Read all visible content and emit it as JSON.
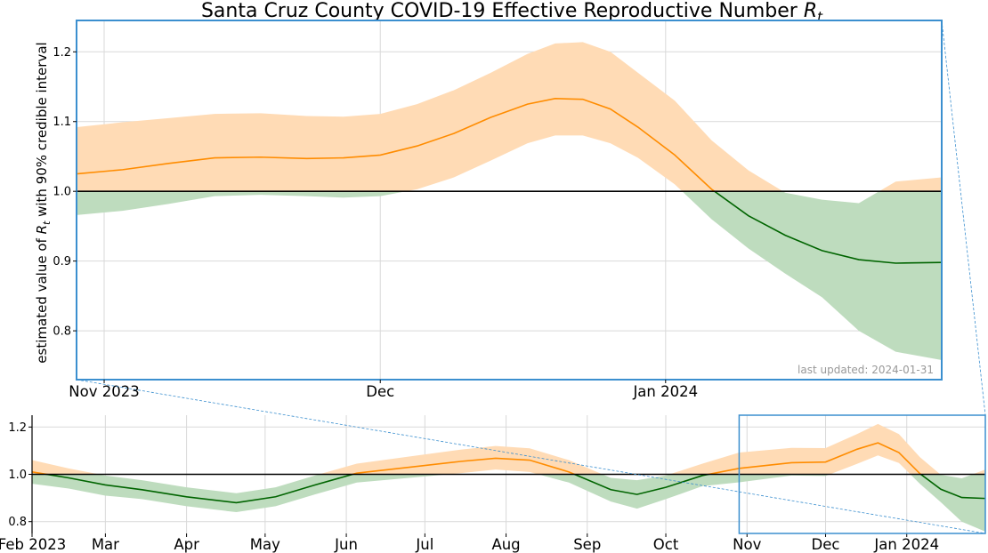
{
  "chart_data": [
    {
      "name": "zoom",
      "type": "area",
      "title": "Santa Cruz County COVID-19 Effective Reproductive Number ",
      "title_symbol": "R",
      "title_subscript": "t",
      "ylabel_prefix": "estimated value of ",
      "ylabel_symbol": "R",
      "ylabel_subscript": "t",
      "ylabel_suffix": " with 90% credible interval",
      "annotation": "last updated: 2024-01-31",
      "x_range": [
        "2023-10-29",
        "2024-01-31"
      ],
      "ylim": [
        0.73,
        1.245
      ],
      "y_ticks": [
        0.8,
        0.9,
        1.0,
        1.1,
        1.2
      ],
      "x_ticks": [
        {
          "date": "2023-11-01",
          "label": "Nov 2023"
        },
        {
          "date": "2023-12-01",
          "label": "Dec"
        },
        {
          "date": "2024-01-01",
          "label": "Jan 2024"
        }
      ],
      "reference_line": 1.0,
      "grid": true,
      "colors": {
        "above": "#ff8c00",
        "above_band": "#ffdbb5",
        "below": "#006400",
        "below_band": "#bedcbe",
        "box": "#3b8fcf"
      },
      "series": [
        {
          "x": "2023-10-29",
          "rt": 1.025,
          "lo": 0.966,
          "hi": 1.092
        },
        {
          "x": "2023-11-03",
          "rt": 1.031,
          "lo": 0.972,
          "hi": 1.099
        },
        {
          "x": "2023-11-08",
          "rt": 1.04,
          "lo": 0.982,
          "hi": 1.105
        },
        {
          "x": "2023-11-13",
          "rt": 1.048,
          "lo": 0.993,
          "hi": 1.111
        },
        {
          "x": "2023-11-18",
          "rt": 1.049,
          "lo": 0.995,
          "hi": 1.112
        },
        {
          "x": "2023-11-23",
          "rt": 1.047,
          "lo": 0.993,
          "hi": 1.108
        },
        {
          "x": "2023-11-27",
          "rt": 1.048,
          "lo": 0.991,
          "hi": 1.107
        },
        {
          "x": "2023-12-01",
          "rt": 1.052,
          "lo": 0.993,
          "hi": 1.111
        },
        {
          "x": "2023-12-05",
          "rt": 1.065,
          "lo": 1.003,
          "hi": 1.125
        },
        {
          "x": "2023-12-09",
          "rt": 1.083,
          "lo": 1.02,
          "hi": 1.145
        },
        {
          "x": "2023-12-13",
          "rt": 1.106,
          "lo": 1.044,
          "hi": 1.17
        },
        {
          "x": "2023-12-17",
          "rt": 1.125,
          "lo": 1.069,
          "hi": 1.197
        },
        {
          "x": "2023-12-20",
          "rt": 1.133,
          "lo": 1.08,
          "hi": 1.212
        },
        {
          "x": "2023-12-23",
          "rt": 1.132,
          "lo": 1.08,
          "hi": 1.214
        },
        {
          "x": "2023-12-26",
          "rt": 1.118,
          "lo": 1.069,
          "hi": 1.2
        },
        {
          "x": "2023-12-29",
          "rt": 1.092,
          "lo": 1.048,
          "hi": 1.17
        },
        {
          "x": "2024-01-02",
          "rt": 1.052,
          "lo": 1.01,
          "hi": 1.13
        },
        {
          "x": "2024-01-06",
          "rt": 1.003,
          "lo": 0.96,
          "hi": 1.073
        },
        {
          "x": "2024-01-10",
          "rt": 0.965,
          "lo": 0.918,
          "hi": 1.03
        },
        {
          "x": "2024-01-14",
          "rt": 0.937,
          "lo": 0.882,
          "hi": 0.998
        },
        {
          "x": "2024-01-18",
          "rt": 0.915,
          "lo": 0.848,
          "hi": 0.988
        },
        {
          "x": "2024-01-22",
          "rt": 0.902,
          "lo": 0.8,
          "hi": 0.983
        },
        {
          "x": "2024-01-26",
          "rt": 0.897,
          "lo": 0.77,
          "hi": 1.014
        },
        {
          "x": "2024-01-31",
          "rt": 0.898,
          "lo": 0.758,
          "hi": 1.02
        }
      ]
    },
    {
      "name": "overview",
      "type": "area",
      "x_range": [
        "2023-02-01",
        "2024-01-31"
      ],
      "ylim": [
        0.75,
        1.25
      ],
      "y_ticks": [
        0.8,
        1.0,
        1.2
      ],
      "x_ticks": [
        {
          "date": "2023-02-01",
          "label": "Feb 2023"
        },
        {
          "date": "2023-03-01",
          "label": "Mar"
        },
        {
          "date": "2023-04-01",
          "label": "Apr"
        },
        {
          "date": "2023-05-01",
          "label": "May"
        },
        {
          "date": "2023-06-01",
          "label": "Jun"
        },
        {
          "date": "2023-07-01",
          "label": "Jul"
        },
        {
          "date": "2023-08-01",
          "label": "Aug"
        },
        {
          "date": "2023-09-01",
          "label": "Sep"
        },
        {
          "date": "2023-10-01",
          "label": "Oct"
        },
        {
          "date": "2023-11-01",
          "label": "Nov"
        },
        {
          "date": "2023-12-01",
          "label": "Dec"
        },
        {
          "date": "2024-01-01",
          "label": "Jan 2024"
        }
      ],
      "reference_line": 1.0,
      "zoom_window": [
        "2023-10-29",
        "2024-01-31"
      ],
      "series": [
        {
          "x": "2023-02-01",
          "rt": 1.01,
          "lo": 0.96,
          "hi": 1.06
        },
        {
          "x": "2023-02-15",
          "rt": 0.985,
          "lo": 0.94,
          "hi": 1.025
        },
        {
          "x": "2023-03-01",
          "rt": 0.955,
          "lo": 0.91,
          "hi": 0.995
        },
        {
          "x": "2023-03-15",
          "rt": 0.935,
          "lo": 0.895,
          "hi": 0.975
        },
        {
          "x": "2023-04-01",
          "rt": 0.905,
          "lo": 0.865,
          "hi": 0.945
        },
        {
          "x": "2023-04-20",
          "rt": 0.88,
          "lo": 0.84,
          "hi": 0.92
        },
        {
          "x": "2023-05-05",
          "rt": 0.905,
          "lo": 0.865,
          "hi": 0.945
        },
        {
          "x": "2023-05-20",
          "rt": 0.955,
          "lo": 0.915,
          "hi": 0.995
        },
        {
          "x": "2023-06-05",
          "rt": 1.005,
          "lo": 0.965,
          "hi": 1.045
        },
        {
          "x": "2023-06-25",
          "rt": 1.03,
          "lo": 0.985,
          "hi": 1.075
        },
        {
          "x": "2023-07-15",
          "rt": 1.055,
          "lo": 1.005,
          "hi": 1.105
        },
        {
          "x": "2023-07-28",
          "rt": 1.068,
          "lo": 1.02,
          "hi": 1.12
        },
        {
          "x": "2023-08-10",
          "rt": 1.06,
          "lo": 1.01,
          "hi": 1.11
        },
        {
          "x": "2023-08-25",
          "rt": 1.01,
          "lo": 0.965,
          "hi": 1.06
        },
        {
          "x": "2023-09-10",
          "rt": 0.935,
          "lo": 0.885,
          "hi": 0.985
        },
        {
          "x": "2023-09-20",
          "rt": 0.915,
          "lo": 0.855,
          "hi": 0.975
        },
        {
          "x": "2023-10-01",
          "rt": 0.945,
          "lo": 0.895,
          "hi": 0.995
        },
        {
          "x": "2023-10-15",
          "rt": 0.995,
          "lo": 0.95,
          "hi": 1.045
        },
        {
          "x": "2023-10-29",
          "rt": 1.025,
          "lo": 0.966,
          "hi": 1.092
        },
        {
          "x": "2023-11-18",
          "rt": 1.049,
          "lo": 0.995,
          "hi": 1.112
        },
        {
          "x": "2023-12-01",
          "rt": 1.052,
          "lo": 0.993,
          "hi": 1.111
        },
        {
          "x": "2023-12-13",
          "rt": 1.106,
          "lo": 1.044,
          "hi": 1.17
        },
        {
          "x": "2023-12-21",
          "rt": 1.133,
          "lo": 1.08,
          "hi": 1.213
        },
        {
          "x": "2023-12-29",
          "rt": 1.092,
          "lo": 1.048,
          "hi": 1.17
        },
        {
          "x": "2024-01-06",
          "rt": 1.003,
          "lo": 0.96,
          "hi": 1.073
        },
        {
          "x": "2024-01-14",
          "rt": 0.937,
          "lo": 0.882,
          "hi": 0.998
        },
        {
          "x": "2024-01-22",
          "rt": 0.902,
          "lo": 0.8,
          "hi": 0.983
        },
        {
          "x": "2024-01-31",
          "rt": 0.898,
          "lo": 0.758,
          "hi": 1.02
        }
      ]
    }
  ]
}
